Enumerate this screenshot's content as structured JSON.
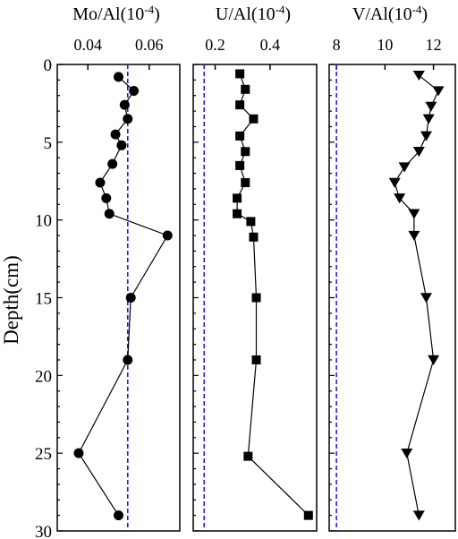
{
  "chart_data": [
    {
      "type": "line",
      "title": "Mo/Al(10",
      "title_sup": "-4",
      "title_close": ")",
      "ylabel": "Depth(cm)",
      "yticks": [
        "0",
        "5",
        "10",
        "15",
        "20",
        "25",
        "30"
      ],
      "ylim": [
        0,
        30
      ],
      "y_inverted": true,
      "xlim": [
        0.03,
        0.07
      ],
      "xticks": [
        "0.04",
        "0.06"
      ],
      "xtick_values": [
        0.04,
        0.06
      ],
      "marker": "circle",
      "reference_line": 0.053,
      "reference_color": "#1f1fd6",
      "x": [
        0.05,
        0.055,
        0.052,
        0.053,
        0.049,
        0.051,
        0.048,
        0.044,
        0.046,
        0.047,
        0.066,
        0.054,
        0.053,
        0.037,
        0.05
      ],
      "y": [
        0.8,
        1.7,
        2.6,
        3.5,
        4.5,
        5.2,
        6.4,
        7.6,
        8.6,
        9.6,
        11.0,
        15.0,
        19.0,
        25.0,
        29.0
      ]
    },
    {
      "type": "line",
      "title": "U/Al(10",
      "title_sup": "-4",
      "title_close": ")",
      "ylim": [
        0,
        30
      ],
      "y_inverted": true,
      "xlim": [
        0.12,
        0.57
      ],
      "xticks": [
        "0.2",
        "0.4"
      ],
      "xtick_values": [
        0.2,
        0.4
      ],
      "marker": "square",
      "reference_line": 0.16,
      "reference_color": "#1f1fd6",
      "x": [
        0.29,
        0.31,
        0.29,
        0.34,
        0.29,
        0.31,
        0.29,
        0.31,
        0.28,
        0.28,
        0.33,
        0.34,
        0.35,
        0.35,
        0.32,
        0.54
      ],
      "y": [
        0.6,
        1.6,
        2.6,
        3.5,
        4.6,
        5.6,
        6.5,
        7.6,
        8.6,
        9.6,
        10.1,
        11.1,
        15.0,
        19.0,
        25.2,
        29.0
      ]
    },
    {
      "type": "line",
      "title": "V/Al(10",
      "title_sup": "-4",
      "title_close": ")",
      "ylim": [
        0,
        30
      ],
      "y_inverted": true,
      "xlim": [
        7.7,
        12.9
      ],
      "xticks": [
        "8",
        "10",
        "12"
      ],
      "xtick_values": [
        8,
        10,
        12
      ],
      "marker": "triangle-down",
      "reference_line": 8.0,
      "reference_color": "#1f1fd6",
      "x": [
        11.4,
        12.2,
        11.9,
        11.8,
        11.7,
        11.4,
        10.8,
        10.4,
        10.6,
        11.2,
        11.2,
        11.7,
        12.0,
        10.9,
        11.4
      ],
      "y": [
        0.7,
        1.7,
        2.7,
        3.5,
        4.6,
        5.6,
        6.6,
        7.6,
        8.6,
        9.6,
        11.0,
        15.0,
        19.0,
        25.0,
        29.0
      ]
    }
  ]
}
